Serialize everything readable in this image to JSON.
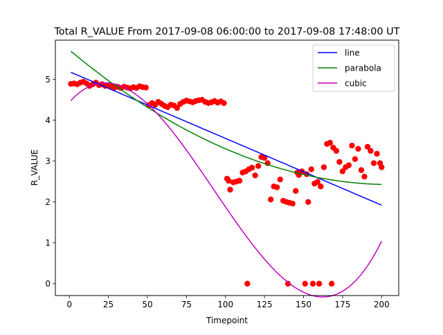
{
  "chart_data": {
    "type": "scatter",
    "title": "Total R_VALUE From 2017-09-08 06:00:00 to 2017-09-08 17:48:00 UT",
    "xlabel": "Timepoint",
    "ylabel": "R_VALUE",
    "xlim": [
      -8.95,
      210.95
    ],
    "ylim": [
      -0.29,
      5.96
    ],
    "xticks": [
      "0",
      "25",
      "50",
      "75",
      "100",
      "125",
      "150",
      "175",
      "200"
    ],
    "yticks": [
      "0",
      "1",
      "2",
      "3",
      "4",
      "5"
    ],
    "grid": false,
    "legend_position": "upper right",
    "scatter_color": "#ff0000",
    "points": {
      "x": [
        1,
        3,
        5,
        7,
        9,
        11,
        13,
        15,
        17,
        19,
        21,
        23,
        25,
        27,
        29,
        31,
        33,
        35,
        37,
        39,
        41,
        43,
        45,
        47,
        49,
        51,
        53,
        55,
        57,
        59,
        61,
        63,
        65,
        67,
        69,
        71,
        73,
        75,
        77,
        79,
        81,
        83,
        85,
        87,
        89,
        91,
        93,
        95,
        97,
        99,
        101,
        102,
        103,
        105,
        107,
        109,
        111,
        113,
        114,
        115,
        117,
        119,
        121,
        123,
        125,
        127,
        129,
        131,
        133,
        135,
        137,
        139,
        140,
        141,
        143,
        145,
        146,
        147,
        149,
        151,
        152,
        153,
        155,
        156,
        157,
        159,
        160,
        161,
        163,
        165,
        167,
        168,
        169,
        171,
        173,
        175,
        177,
        179,
        181,
        183,
        185,
        187,
        189,
        191,
        193,
        195,
        197,
        199,
        200
      ],
      "y": [
        4.89,
        4.9,
        4.88,
        4.92,
        4.94,
        4.9,
        4.84,
        4.88,
        4.92,
        4.86,
        4.88,
        4.84,
        4.86,
        4.83,
        4.8,
        4.82,
        4.79,
        4.82,
        4.8,
        4.78,
        4.81,
        4.79,
        4.83,
        4.81,
        4.8,
        4.37,
        4.42,
        4.38,
        4.45,
        4.4,
        4.35,
        4.32,
        4.38,
        4.36,
        4.3,
        4.4,
        4.45,
        4.48,
        4.46,
        4.44,
        4.47,
        4.49,
        4.5,
        4.45,
        4.42,
        4.44,
        4.47,
        4.43,
        4.46,
        4.42,
        2.57,
        2.52,
        2.3,
        2.48,
        2.5,
        2.52,
        2.72,
        2.75,
        0.0,
        2.8,
        2.84,
        2.65,
        2.88,
        3.1,
        3.08,
        2.95,
        2.06,
        2.38,
        2.36,
        2.55,
        2.03,
        2.0,
        0.0,
        1.98,
        1.96,
        2.27,
        2.72,
        2.66,
        2.75,
        0.0,
        2.68,
        2.0,
        2.8,
        0.0,
        2.45,
        2.49,
        0.0,
        2.38,
        2.85,
        3.42,
        3.45,
        0.0,
        3.33,
        3.25,
        2.98,
        2.75,
        2.85,
        2.9,
        3.38,
        3.05,
        3.3,
        2.78,
        2.62,
        3.35,
        3.25,
        2.95,
        3.18,
        2.95,
        2.85
      ]
    },
    "series": [
      {
        "name": "line",
        "kind": "linear",
        "color": "#0000ff",
        "x": [
          1,
          200
        ],
        "coeffs": [
          5.19,
          -0.01634
        ]
      },
      {
        "name": "parabola",
        "kind": "quadratic",
        "color": "#008000",
        "x": [
          1,
          200
        ],
        "coeffs": [
          5.72,
          -0.0319,
          7.72e-05
        ]
      },
      {
        "name": "cubic",
        "kind": "cubic",
        "color": "#bf00bf",
        "x": [
          1,
          200
        ],
        "coeffs": [
          4.44,
          0.0434,
          -0.001078,
          3.88e-06
        ]
      }
    ]
  }
}
